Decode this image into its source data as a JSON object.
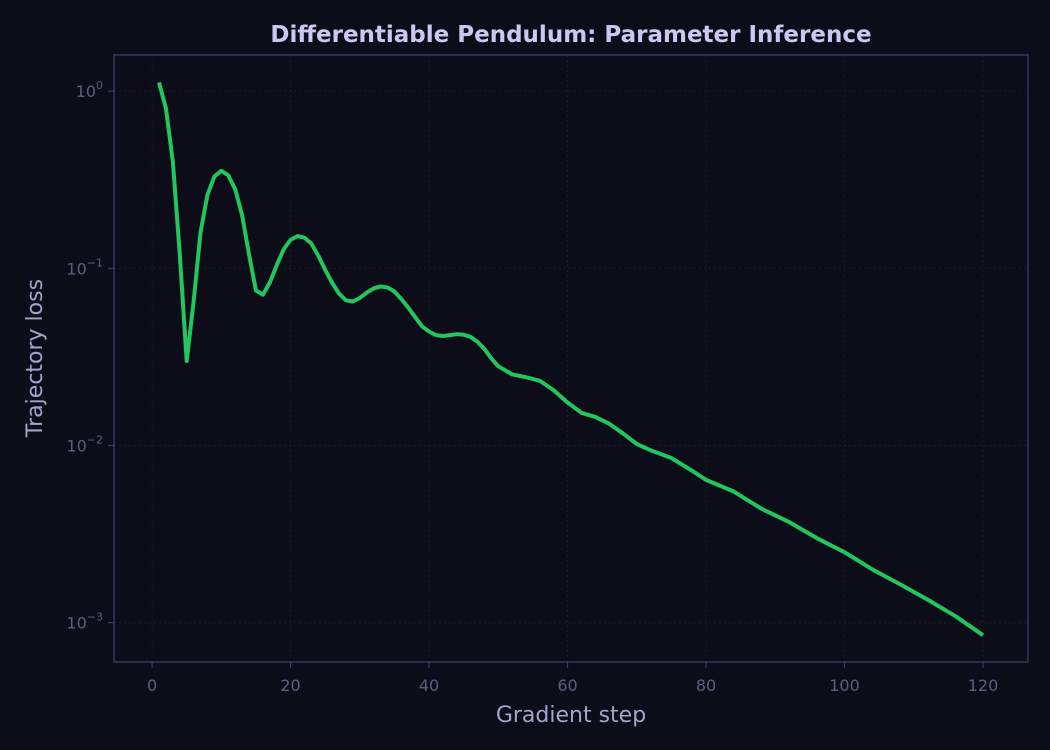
{
  "chart_data": {
    "type": "line",
    "title": "Differentiable Pendulum: Parameter Inference",
    "xlabel": "Gradient step",
    "ylabel": "Trajectory loss",
    "xlim": [
      -5.5,
      126.5
    ],
    "ylim": [
      0.0006,
      1.6
    ],
    "yscale": "log",
    "grid": true,
    "x_ticks": [
      0,
      20,
      40,
      60,
      80,
      100,
      120
    ],
    "x_tick_labels": [
      "0",
      "20",
      "40",
      "60",
      "80",
      "100",
      "120"
    ],
    "y_ticks": [
      {
        "value": 1,
        "base": "10",
        "exp": "0"
      },
      {
        "value": 0.1,
        "base": "10",
        "exp": "−1"
      },
      {
        "value": 0.01,
        "base": "10",
        "exp": "−2"
      },
      {
        "value": 0.001,
        "base": "10",
        "exp": "−3"
      }
    ],
    "colors": {
      "background": "#0c0d19",
      "line": "#22c55e",
      "title": "#c9c8f0",
      "axis_label": "#a6a3c8",
      "tick_label": "#5f5d82",
      "spine": "#3b3a5c",
      "grid": "#1a1b2c"
    },
    "series": [
      {
        "x": [
          1,
          2,
          3,
          4,
          5,
          6,
          7,
          8,
          9,
          10,
          11,
          12,
          13,
          14,
          15,
          16,
          17,
          18,
          19,
          20,
          21,
          22,
          23,
          24,
          25,
          26,
          27,
          28,
          29,
          30,
          31,
          32,
          33,
          34,
          35,
          36,
          37,
          38,
          39,
          40,
          41,
          42,
          43,
          44,
          45,
          46,
          47,
          48,
          49,
          50,
          52,
          54,
          56,
          58,
          60,
          62,
          64,
          66,
          68,
          70,
          72,
          75,
          78,
          80,
          84,
          88,
          92,
          96,
          100,
          104,
          108,
          112,
          116,
          120
        ],
        "values": [
          1.12,
          0.8,
          0.4,
          0.12,
          0.03,
          0.065,
          0.16,
          0.26,
          0.33,
          0.355,
          0.335,
          0.28,
          0.2,
          0.12,
          0.075,
          0.071,
          0.083,
          0.104,
          0.128,
          0.145,
          0.152,
          0.149,
          0.138,
          0.118,
          0.098,
          0.083,
          0.072,
          0.066,
          0.065,
          0.068,
          0.073,
          0.077,
          0.079,
          0.078,
          0.074,
          0.067,
          0.06,
          0.053,
          0.047,
          0.044,
          0.042,
          0.0415,
          0.042,
          0.0425,
          0.0422,
          0.041,
          0.0385,
          0.035,
          0.031,
          0.028,
          0.0252,
          0.0243,
          0.0232,
          0.0205,
          0.0175,
          0.0153,
          0.0145,
          0.0133,
          0.0117,
          0.0102,
          0.0094,
          0.0085,
          0.0072,
          0.0064,
          0.0055,
          0.0044,
          0.0037,
          0.003,
          0.0025,
          0.002,
          0.00165,
          0.00135,
          0.00109,
          0.00085
        ]
      }
    ]
  }
}
